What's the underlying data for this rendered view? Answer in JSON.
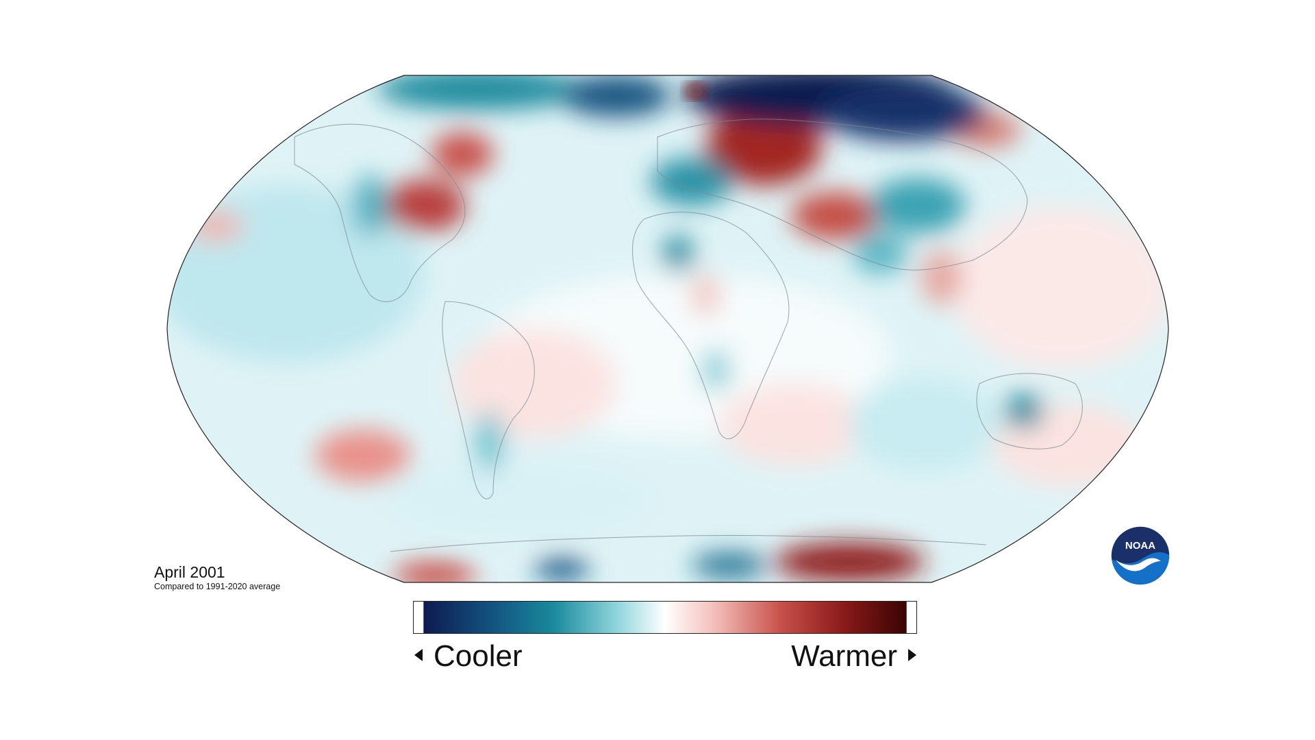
{
  "map": {
    "projection": "robinson",
    "caption": "April 2001",
    "subcaption": "Compared to 1991-2020 average"
  },
  "legend": {
    "low_label": "Cooler",
    "high_label": "Warmer",
    "colors": [
      "#0e1b4f",
      "#135280",
      "#1a8a9c",
      "#8fd5dd",
      "#ffffff",
      "#f3c0bc",
      "#c8504a",
      "#8a1a1a",
      "#3b0303"
    ]
  },
  "logo": {
    "text": "NOAA",
    "colors": {
      "top": "#1b2f6b",
      "bottom": "#1470c8"
    }
  },
  "anomaly_regions": [
    {
      "name": "Arctic north of Siberia",
      "value": "cooler"
    },
    {
      "name": "Western Russia",
      "value": "warmer"
    },
    {
      "name": "Central Asia",
      "value": "warmer"
    },
    {
      "name": "Eastern United States",
      "value": "warmer"
    },
    {
      "name": "Hudson Bay",
      "value": "warmer"
    },
    {
      "name": "Eastern Siberia / Kamchatka",
      "value": "warmer"
    },
    {
      "name": "Western Europe",
      "value": "cooler"
    },
    {
      "name": "Central Asia (east)",
      "value": "cooler"
    },
    {
      "name": "Northwest Africa",
      "value": "cooler"
    },
    {
      "name": "Australia",
      "value": "cooler"
    },
    {
      "name": "South Pacific",
      "value": "warmer"
    },
    {
      "name": "Antarctica (east)",
      "value": "warmer"
    },
    {
      "name": "Antarctica (west)",
      "value": "cooler"
    }
  ]
}
